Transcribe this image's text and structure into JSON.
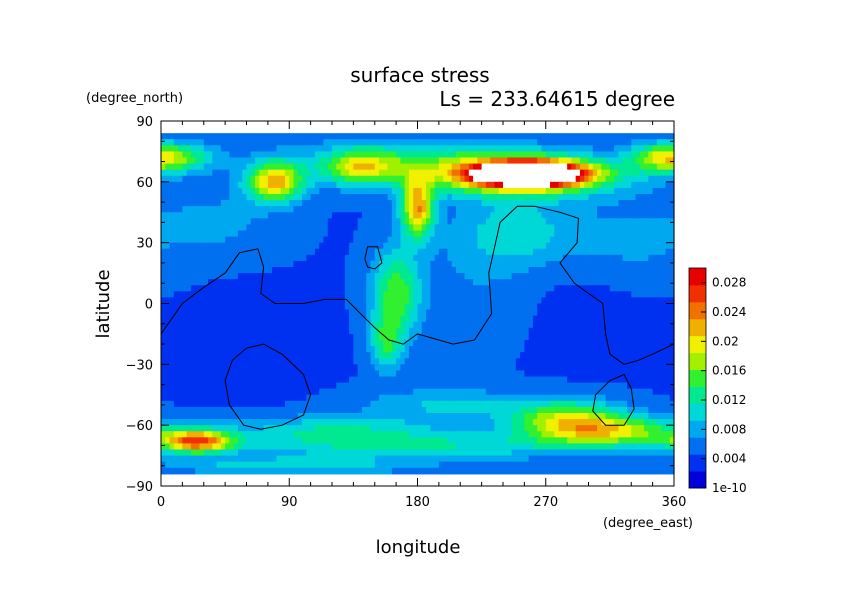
{
  "chart_data": {
    "type": "heatmap",
    "title": "surface stress",
    "subtitle": "Ls = 233.64615 degree",
    "xlabel": "longitude",
    "ylabel": "latitude",
    "x_units": "(degree_east)",
    "y_units": "(degree_north)",
    "xlim": [
      0,
      360
    ],
    "ylim": [
      -90,
      90
    ],
    "xticks": [
      "0",
      "90",
      "180",
      "270",
      "360"
    ],
    "yticks": [
      "90",
      "60",
      "30",
      "0",
      "−30",
      "−60",
      "−90"
    ],
    "colorbar": {
      "min": 0,
      "max": 0.03,
      "tick_labels": [
        "0.028",
        "0.024",
        "0.02",
        "0.016",
        "0.012",
        "0.008",
        "0.004",
        "1e-10"
      ],
      "tick_values": [
        0.028,
        0.024,
        0.02,
        0.016,
        0.012,
        0.008,
        0.004,
        1e-10
      ],
      "colors": [
        "#0000d8",
        "#0030f0",
        "#0070f0",
        "#00a8f0",
        "#00d8d8",
        "#00e890",
        "#30f030",
        "#a0f000",
        "#f0f000",
        "#f0b000",
        "#f07000",
        "#f03000",
        "#e80000"
      ]
    },
    "field": {
      "background": 0.0045,
      "features": [
        {
          "lon": 258,
          "lat": 64,
          "dlon": 26,
          "dlat": 4,
          "peak": 0.031
        },
        {
          "lon": 255,
          "lat": 63,
          "dlon": 45,
          "dlat": 7,
          "peak": 0.018
        },
        {
          "lon": 80,
          "lat": 60,
          "dlon": 14,
          "dlat": 7,
          "peak": 0.017
        },
        {
          "lon": 180,
          "lat": 47,
          "dlon": 8,
          "dlat": 10,
          "peak": 0.018
        },
        {
          "lon": 140,
          "lat": 67,
          "dlon": 18,
          "dlat": 6,
          "peak": 0.011
        },
        {
          "lon": 180,
          "lat": 70,
          "dlon": 60,
          "dlat": 8,
          "peak": 0.007
        },
        {
          "lon": 10,
          "lat": 72,
          "dlon": 20,
          "dlat": 5,
          "peak": 0.01
        },
        {
          "lon": 350,
          "lat": 72,
          "dlon": 16,
          "dlat": 5,
          "peak": 0.009
        },
        {
          "lon": 165,
          "lat": 5,
          "dlon": 12,
          "dlat": 15,
          "peak": 0.011
        },
        {
          "lon": 158,
          "lat": -20,
          "dlon": 8,
          "dlat": 10,
          "peak": 0.008
        },
        {
          "lon": 250,
          "lat": 35,
          "dlon": 30,
          "dlat": 12,
          "peak": 0.006
        },
        {
          "lon": 25,
          "lat": -68,
          "dlon": 18,
          "dlat": 4,
          "peak": 0.02
        },
        {
          "lon": 285,
          "lat": -58,
          "dlon": 28,
          "dlat": 7,
          "peak": 0.014
        },
        {
          "lon": 325,
          "lat": -63,
          "dlon": 30,
          "dlat": 5,
          "peak": 0.011
        },
        {
          "lon": 180,
          "lat": -70,
          "dlon": 90,
          "dlat": 5,
          "peak": 0.007
        },
        {
          "lon": 120,
          "lat": -62,
          "dlon": 50,
          "dlat": 5,
          "peak": 0.006
        },
        {
          "lon": 200,
          "lat": -50,
          "dlon": 40,
          "dlat": 6,
          "peak": 0.005
        },
        {
          "lon": 90,
          "lat": -80,
          "dlon": 60,
          "dlat": 3,
          "peak": 0.006
        },
        {
          "lon": 40,
          "lat": 40,
          "dlon": 30,
          "dlat": 12,
          "peak": 0.003
        },
        {
          "lon": 330,
          "lat": 30,
          "dlon": 30,
          "dlat": 15,
          "peak": 0.003
        },
        {
          "lon": 220,
          "lat": 10,
          "dlon": 30,
          "dlat": 20,
          "peak": 0.002
        },
        {
          "lon": 60,
          "lat": -20,
          "dlon": 30,
          "dlat": 15,
          "peak": -0.002
        },
        {
          "lon": 300,
          "lat": 0,
          "dlon": 30,
          "dlat": 20,
          "peak": -0.001
        }
      ]
    },
    "contours": [
      [
        [
          0,
          -15
        ],
        [
          15,
          0
        ],
        [
          30,
          8
        ],
        [
          45,
          15
        ],
        [
          55,
          25
        ],
        [
          68,
          27
        ],
        [
          72,
          18
        ],
        [
          70,
          5
        ],
        [
          80,
          0
        ],
        [
          100,
          0
        ],
        [
          115,
          2
        ],
        [
          130,
          2
        ],
        [
          140,
          -5
        ],
        [
          150,
          -12
        ],
        [
          160,
          -18
        ],
        [
          170,
          -20
        ],
        [
          180,
          -15
        ],
        [
          195,
          -18
        ],
        [
          205,
          -20
        ],
        [
          220,
          -18
        ],
        [
          232,
          -5
        ],
        [
          230,
          15
        ],
        [
          238,
          40
        ],
        [
          250,
          48
        ],
        [
          262,
          48
        ],
        [
          280,
          45
        ],
        [
          293,
          42
        ],
        [
          292,
          30
        ],
        [
          280,
          20
        ],
        [
          290,
          10
        ],
        [
          300,
          5
        ],
        [
          310,
          0
        ],
        [
          312,
          -15
        ],
        [
          315,
          -25
        ],
        [
          325,
          -30
        ],
        [
          335,
          -28
        ],
        [
          345,
          -25
        ],
        [
          360,
          -20
        ]
      ],
      [
        [
          143,
          22
        ],
        [
          145,
          28
        ],
        [
          152,
          28
        ],
        [
          155,
          20
        ],
        [
          150,
          17
        ],
        [
          145,
          18
        ],
        [
          143,
          22
        ]
      ],
      [
        [
          60,
          -22
        ],
        [
          72,
          -20
        ],
        [
          85,
          -25
        ],
        [
          100,
          -35
        ],
        [
          105,
          -45
        ],
        [
          100,
          -55
        ],
        [
          85,
          -60
        ],
        [
          70,
          -62
        ],
        [
          58,
          -60
        ],
        [
          48,
          -50
        ],
        [
          45,
          -38
        ],
        [
          50,
          -28
        ],
        [
          60,
          -22
        ]
      ],
      [
        [
          305,
          -45
        ],
        [
          315,
          -38
        ],
        [
          325,
          -35
        ],
        [
          330,
          -42
        ],
        [
          332,
          -52
        ],
        [
          325,
          -60
        ],
        [
          312,
          -60
        ],
        [
          303,
          -53
        ],
        [
          305,
          -45
        ]
      ]
    ]
  }
}
